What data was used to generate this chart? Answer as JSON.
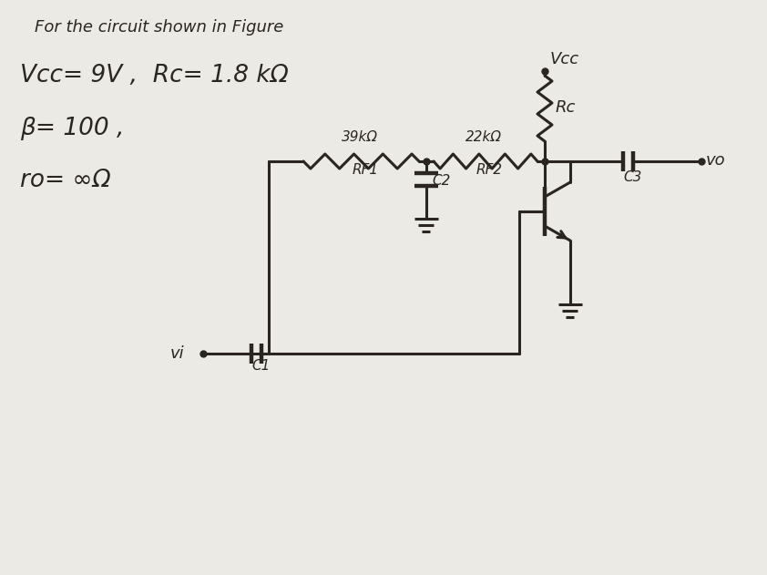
{
  "bg_color": "#eceae4",
  "line_color": "#2a2520",
  "text_color": "#2a2520",
  "title_line1": "For the circuit shown in Figure",
  "title_line2": "Vcc= 9V ,  Rc= 1.8 kΩ",
  "title_line3": "β= 100 ,",
  "title_line4": "ro= ∞Ω",
  "label_vcc": "Vcc",
  "label_rc": "Rc",
  "label_rf1": "RF1",
  "label_rf2": "RF2",
  "label_c1": "C1",
  "label_c2": "C2",
  "label_c3": "C3",
  "label_39k": "39kΩ",
  "label_22k": "22kΩ",
  "label_vi": "vi",
  "label_vo": "vo"
}
